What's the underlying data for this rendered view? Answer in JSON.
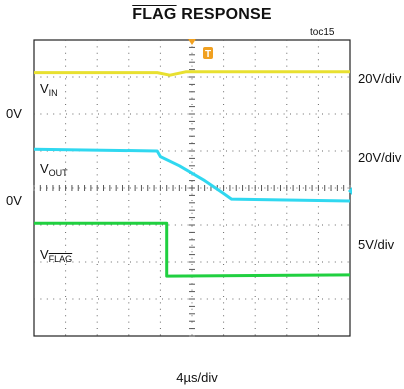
{
  "chart_data": {
    "type": "line",
    "title_overlined": "FLAG",
    "title_rest": " RESPONSE",
    "figure_id": "toc15",
    "xlabel": "4µs/div",
    "divisions": {
      "x": 10,
      "y": 8
    },
    "trigger_marker": "T",
    "zero_markers": [
      {
        "label": "0V",
        "level_div": 6.0
      },
      {
        "label": "0V",
        "level_div": 3.65
      }
    ],
    "scale_labels": [
      {
        "label": "20V/div",
        "level_div": 6.95
      },
      {
        "label": "20V/div",
        "level_div": 4.8
      },
      {
        "label": "5V/div",
        "level_div": 2.45
      }
    ],
    "series": [
      {
        "name_main": "V",
        "name_sub": "IN",
        "sub_overline": false,
        "color": "#e8e030",
        "label_level_div": 6.65,
        "points": [
          [
            0,
            7.12
          ],
          [
            3.9,
            7.12
          ],
          [
            4.3,
            7.05
          ],
          [
            4.8,
            7.14
          ],
          [
            10,
            7.14
          ]
        ]
      },
      {
        "name_main": "V",
        "name_sub": "OUT",
        "sub_overline": false,
        "color": "#30d8f0",
        "label_level_div": 4.5,
        "points": [
          [
            0,
            5.05
          ],
          [
            3.9,
            5.0
          ],
          [
            4.0,
            4.85
          ],
          [
            4.6,
            4.6
          ],
          [
            5.4,
            4.2
          ],
          [
            6.0,
            3.85
          ],
          [
            6.25,
            3.7
          ],
          [
            10,
            3.65
          ]
        ]
      },
      {
        "name_main": "V",
        "name_sub": "FLAG",
        "sub_overline": true,
        "color": "#20d040",
        "label_level_div": 2.15,
        "points": [
          [
            0,
            3.05
          ],
          [
            4.2,
            3.05
          ],
          [
            4.2,
            1.62
          ],
          [
            10,
            1.65
          ]
        ]
      }
    ]
  }
}
